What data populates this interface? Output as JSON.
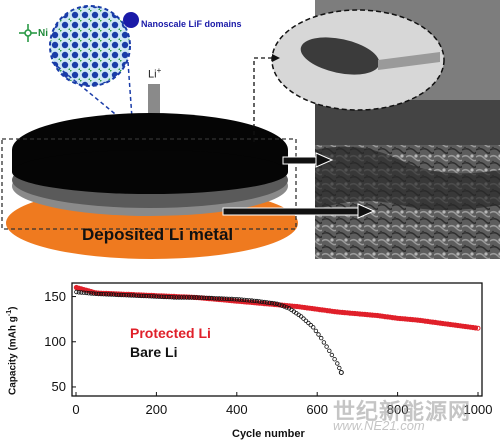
{
  "schematic": {
    "legend_ni": "Ni",
    "legend_lif": "Nanoscale LiF domains",
    "ion_label": "Li",
    "ion_sup": "+",
    "deposit_label": "Deposited Li metal",
    "colors": {
      "ni": "#1f8a3a",
      "lif": "#1a1aa8",
      "top_layer": "#050505",
      "mid_layer": "#8a8a8a",
      "deposit": "#ef7a1f"
    }
  },
  "chart_data": {
    "type": "scatter",
    "xlabel": "Cycle number",
    "ylabel": "Capacity (mAh g",
    "ylabel_sup": "-1",
    "ylabel_tail": ")",
    "xlim": [
      0,
      1000
    ],
    "ylim": [
      40,
      165
    ],
    "xticks": [
      0,
      200,
      400,
      600,
      800,
      1000
    ],
    "yticks": [
      50,
      100,
      150
    ],
    "series": [
      {
        "name": "Protected Li",
        "color": "#e0202a",
        "points": [
          [
            1,
            160
          ],
          [
            50,
            154
          ],
          [
            100,
            153
          ],
          [
            150,
            152
          ],
          [
            200,
            151
          ],
          [
            250,
            150
          ],
          [
            300,
            149
          ],
          [
            350,
            147
          ],
          [
            400,
            145
          ],
          [
            450,
            143
          ],
          [
            500,
            141
          ],
          [
            550,
            139
          ],
          [
            600,
            136
          ],
          [
            650,
            133
          ],
          [
            700,
            131
          ],
          [
            750,
            129
          ],
          [
            800,
            126
          ],
          [
            850,
            124
          ],
          [
            900,
            121
          ],
          [
            950,
            118
          ],
          [
            1000,
            115
          ]
        ]
      },
      {
        "name": "Bare Li",
        "color": "#111111",
        "points": [
          [
            1,
            155
          ],
          [
            50,
            153
          ],
          [
            100,
            152
          ],
          [
            150,
            151
          ],
          [
            200,
            150
          ],
          [
            250,
            149
          ],
          [
            300,
            149
          ],
          [
            350,
            148
          ],
          [
            400,
            147
          ],
          [
            450,
            145
          ],
          [
            500,
            142
          ],
          [
            530,
            137
          ],
          [
            560,
            128
          ],
          [
            590,
            116
          ],
          [
            610,
            104
          ],
          [
            630,
            90
          ],
          [
            650,
            76
          ],
          [
            660,
            66
          ]
        ]
      }
    ]
  },
  "watermark": {
    "text": "世纪新能源网",
    "url": "www.NE21.com"
  }
}
